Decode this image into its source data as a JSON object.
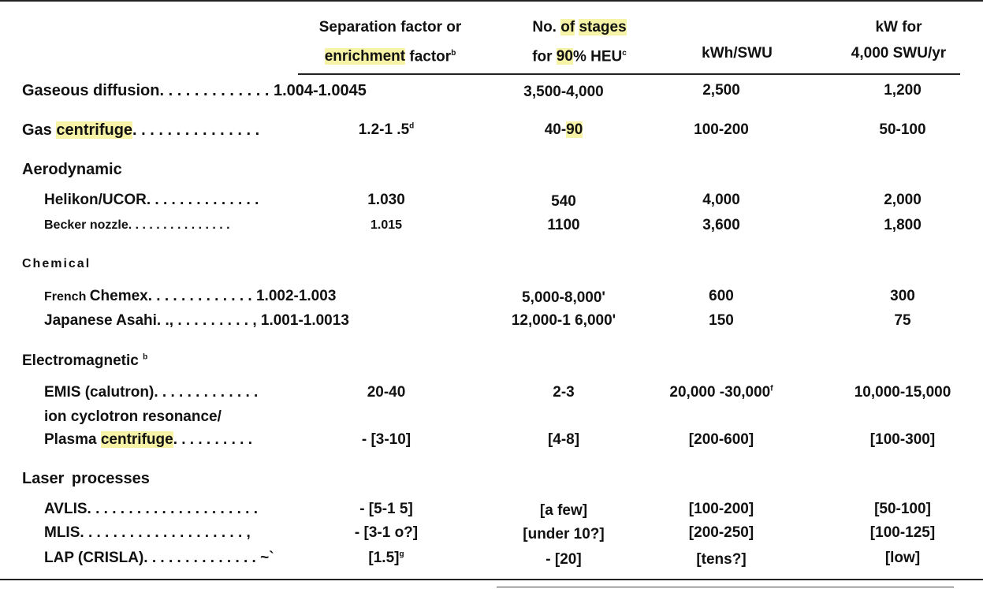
{
  "header": {
    "col2_line1": "Separation factor or",
    "col2_line2_hl": "enrichment",
    "col2_line2_rest": " factor",
    "col2_sup": "b",
    "col3_line1_a": "No. ",
    "col3_line1_hl1": "of",
    "col3_line1_sp": " ",
    "col3_line1_hl2": "stages",
    "col3_line2_a": "for ",
    "col3_line2_hl": "90",
    "col3_line2_rest": "% HEU",
    "col3_sup": "c",
    "col4": "kWh/SWU",
    "col5_line1": "kW for",
    "col5_line2": "4,000 SWU/yr"
  },
  "rows": {
    "gaseous": {
      "label": "Gaseous diffusion. . . . . . . . . . . . .",
      "sep": "1.004-1.0045",
      "stages": "3,500-4,000",
      "kwh": "2,500",
      "kw": "1,200"
    },
    "centrifuge": {
      "label_a": "Gas ",
      "label_hl": "centrifuge",
      "label_b": ". . . . . . . . . . . . . . .",
      "sep": "1.2-1 .5",
      "sep_sup": "d",
      "stages_a": "40-",
      "stages_hl": "90",
      "kwh": "100-200",
      "kw": "50-100"
    },
    "aero_head": "Aerodynamic",
    "helikon": {
      "label": "Helikon/UCOR. . . . . . . . . . . . . .",
      "sep": "1.030",
      "stages": "540",
      "kwh": "4,000",
      "kw": "2,000"
    },
    "becker": {
      "label": "Becker nozzle. . . . . . . . . . . . . . .",
      "sep": "1.015",
      "stages": "1100",
      "kwh": "3,600",
      "kw": "1,800"
    },
    "chem_head": "Chemical",
    "chemex": {
      "label_small": "French ",
      "label": "Chemex. . . . . . . . . . . . . 1.002-1.003",
      "stages": "5,000-8,000'",
      "kwh": "600",
      "kw": "300"
    },
    "asahi": {
      "label": "Japanese Asahi. ., . . . . . . . . . , 1.001-1.0013",
      "stages": "12,000-1 6,000'",
      "kwh": "150",
      "kw": "75"
    },
    "em_head": "Electromagnetic",
    "em_sup": "b",
    "emis": {
      "label": "EMIS (calutron). . . . . . . . . . . . .",
      "sep": "20-40",
      "stages": "2-3",
      "kwh": "20,000 -30,000",
      "kwh_sup": "f",
      "kw": "10,000-15,000"
    },
    "icr": {
      "label": "ion cyclotron resonance/"
    },
    "plasma": {
      "label_a": "Plasma ",
      "label_hl": "centrifuge",
      "label_b": ". . . . . . . . . .",
      "sep": "- [3-10]",
      "stages": "[4-8]",
      "kwh": "[200-600]",
      "kw": "[100-300]"
    },
    "laser_head": "Laser processes",
    "avlis": {
      "label": "AVLIS. . . . . . . . . . . . . . . . . . . . .",
      "sep": "- [5-1 5]",
      "stages": "[a few]",
      "kwh": "[100-200]",
      "kw": "[50-100]"
    },
    "mlis": {
      "label": "MLIS. . . . . . . . . . . . . . . . . . . . ,",
      "sep": "- [3-1 o?]",
      "stages": "[under 10?]",
      "kwh": "[200-250]",
      "kw": "[100-125]"
    },
    "lap": {
      "label": "LAP (CRISLA). . . . . . . . . . . . . . ~`",
      "sep": "[1.5]",
      "sep_sup": "g",
      "stages": "- [20]",
      "kwh": "[tens?]",
      "kw": "[low]"
    }
  }
}
